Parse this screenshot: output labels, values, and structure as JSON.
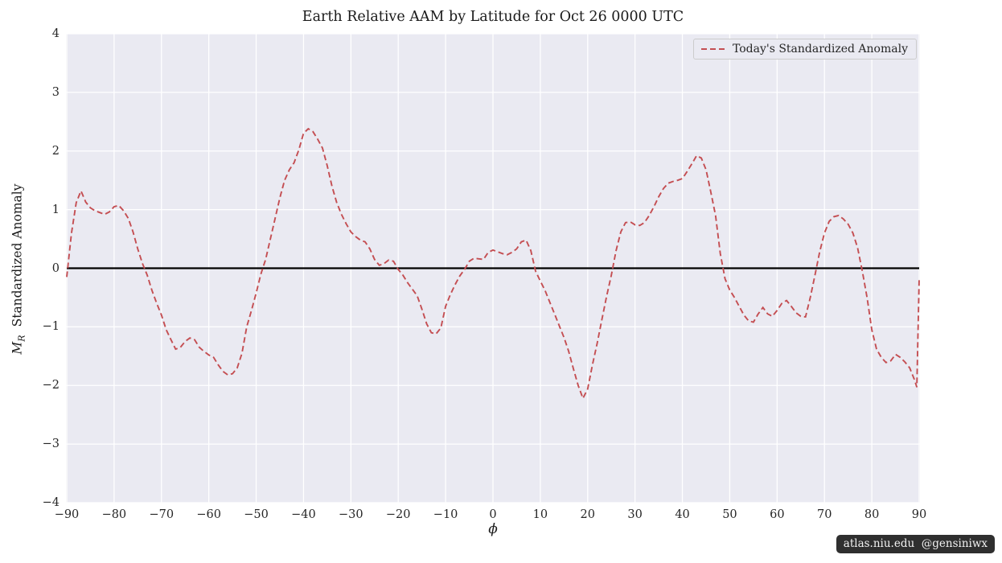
{
  "watermark": "atlas.niu.edu  @gensiniwx",
  "labels": {
    "ylabel_var": "M",
    "ylabel_sub": "R",
    "ylabel_text": "Standardized Anomaly"
  },
  "colors": {
    "axes_background": "#eaeaf2",
    "grid": "#ffffff",
    "series_red": "#c44e52",
    "zero_line": "#000000",
    "text": "#262626",
    "legend_border": "#cccccc",
    "badge_background": "#0a0a0a",
    "badge_text": "#f2f2f2"
  },
  "chart_data": {
    "type": "line",
    "title": "Earth Relative AAM by Latitude for Oct 26 0000 UTC",
    "xlabel": "ϕ",
    "ylabel": "M_R  Standardized Anomaly",
    "xlim": [
      -90,
      90
    ],
    "ylim": [
      -4,
      4
    ],
    "grid": true,
    "legend_position": "upper right",
    "xticks": [
      -90,
      -80,
      -70,
      -60,
      -50,
      -40,
      -30,
      -20,
      -10,
      0,
      10,
      20,
      30,
      40,
      50,
      60,
      70,
      80,
      90
    ],
    "xtick_labels": [
      "−90",
      "−80",
      "−70",
      "−60",
      "−50",
      "−40",
      "−30",
      "−20",
      "−10",
      "0",
      "10",
      "20",
      "30",
      "40",
      "50",
      "60",
      "70",
      "80",
      "90"
    ],
    "yticks": [
      -4,
      -3,
      -2,
      -1,
      0,
      1,
      2,
      3,
      4
    ],
    "ytick_labels": [
      "−4",
      "−3",
      "−2",
      "−1",
      "0",
      "1",
      "2",
      "3",
      "4"
    ],
    "zero_line": {
      "y": 0,
      "color": "#000000"
    },
    "series": [
      {
        "name": "Today's Standardized Anomaly",
        "color": "#c44e52",
        "style": "dashed",
        "points": [
          [
            -90,
            -0.15
          ],
          [
            -89,
            0.6
          ],
          [
            -88,
            1.12
          ],
          [
            -87,
            1.32
          ],
          [
            -86,
            1.13
          ],
          [
            -85,
            1.03
          ],
          [
            -84,
            0.98
          ],
          [
            -83,
            0.95
          ],
          [
            -82,
            0.92
          ],
          [
            -81,
            0.96
          ],
          [
            -80,
            1.05
          ],
          [
            -79,
            1.07
          ],
          [
            -78,
            0.98
          ],
          [
            -77,
            0.85
          ],
          [
            -76,
            0.62
          ],
          [
            -75,
            0.33
          ],
          [
            -74,
            0.08
          ],
          [
            -73,
            -0.12
          ],
          [
            -72,
            -0.38
          ],
          [
            -71,
            -0.6
          ],
          [
            -70,
            -0.8
          ],
          [
            -69,
            -1.05
          ],
          [
            -68,
            -1.22
          ],
          [
            -67,
            -1.38
          ],
          [
            -66,
            -1.35
          ],
          [
            -65,
            -1.25
          ],
          [
            -64,
            -1.19
          ],
          [
            -63,
            -1.22
          ],
          [
            -62,
            -1.35
          ],
          [
            -61,
            -1.42
          ],
          [
            -60,
            -1.48
          ],
          [
            -59,
            -1.52
          ],
          [
            -58,
            -1.65
          ],
          [
            -57,
            -1.76
          ],
          [
            -56,
            -1.82
          ],
          [
            -55,
            -1.8
          ],
          [
            -54,
            -1.7
          ],
          [
            -53,
            -1.45
          ],
          [
            -52,
            -1.0
          ],
          [
            -51,
            -0.72
          ],
          [
            -50,
            -0.42
          ],
          [
            -49,
            -0.1
          ],
          [
            -48,
            0.15
          ],
          [
            -47,
            0.5
          ],
          [
            -46,
            0.85
          ],
          [
            -45,
            1.2
          ],
          [
            -44,
            1.5
          ],
          [
            -43,
            1.68
          ],
          [
            -42,
            1.8
          ],
          [
            -41,
            2.02
          ],
          [
            -40,
            2.3
          ],
          [
            -39,
            2.38
          ],
          [
            -38,
            2.33
          ],
          [
            -37,
            2.2
          ],
          [
            -36,
            2.05
          ],
          [
            -35,
            1.75
          ],
          [
            -34,
            1.4
          ],
          [
            -33,
            1.12
          ],
          [
            -32,
            0.92
          ],
          [
            -31,
            0.76
          ],
          [
            -30,
            0.62
          ],
          [
            -29,
            0.54
          ],
          [
            -28,
            0.48
          ],
          [
            -27,
            0.45
          ],
          [
            -26,
            0.33
          ],
          [
            -25,
            0.15
          ],
          [
            -24,
            0.05
          ],
          [
            -23,
            0.08
          ],
          [
            -22,
            0.14
          ],
          [
            -21,
            0.12
          ],
          [
            -20,
            -0.02
          ],
          [
            -19,
            -0.12
          ],
          [
            -18,
            -0.25
          ],
          [
            -17,
            -0.36
          ],
          [
            -16,
            -0.47
          ],
          [
            -15,
            -0.7
          ],
          [
            -14,
            -0.95
          ],
          [
            -13,
            -1.1
          ],
          [
            -12,
            -1.12
          ],
          [
            -11,
            -1.02
          ],
          [
            -10,
            -0.65
          ],
          [
            -9,
            -0.45
          ],
          [
            -8,
            -0.28
          ],
          [
            -7,
            -0.13
          ],
          [
            -6,
            -0.02
          ],
          [
            -5,
            0.12
          ],
          [
            -4,
            0.17
          ],
          [
            -3,
            0.16
          ],
          [
            -2,
            0.15
          ],
          [
            -1,
            0.27
          ],
          [
            0,
            0.31
          ],
          [
            1,
            0.28
          ],
          [
            2,
            0.25
          ],
          [
            3,
            0.23
          ],
          [
            4,
            0.27
          ],
          [
            5,
            0.33
          ],
          [
            6,
            0.45
          ],
          [
            7,
            0.48
          ],
          [
            8,
            0.3
          ],
          [
            9,
            -0.05
          ],
          [
            10,
            -0.22
          ],
          [
            11,
            -0.38
          ],
          [
            12,
            -0.58
          ],
          [
            13,
            -0.78
          ],
          [
            14,
            -0.98
          ],
          [
            15,
            -1.18
          ],
          [
            16,
            -1.42
          ],
          [
            17,
            -1.72
          ],
          [
            18,
            -2.0
          ],
          [
            19,
            -2.22
          ],
          [
            20,
            -2.06
          ],
          [
            21,
            -1.65
          ],
          [
            22,
            -1.28
          ],
          [
            23,
            -0.88
          ],
          [
            24,
            -0.48
          ],
          [
            25,
            -0.12
          ],
          [
            26,
            0.3
          ],
          [
            27,
            0.62
          ],
          [
            28,
            0.78
          ],
          [
            29,
            0.79
          ],
          [
            30,
            0.74
          ],
          [
            31,
            0.73
          ],
          [
            32,
            0.78
          ],
          [
            33,
            0.9
          ],
          [
            34,
            1.05
          ],
          [
            35,
            1.22
          ],
          [
            36,
            1.36
          ],
          [
            37,
            1.45
          ],
          [
            38,
            1.48
          ],
          [
            39,
            1.5
          ],
          [
            40,
            1.53
          ],
          [
            41,
            1.65
          ],
          [
            42,
            1.78
          ],
          [
            43,
            1.92
          ],
          [
            44,
            1.88
          ],
          [
            45,
            1.68
          ],
          [
            46,
            1.3
          ],
          [
            47,
            0.9
          ],
          [
            48,
            0.25
          ],
          [
            49,
            -0.18
          ],
          [
            50,
            -0.37
          ],
          [
            51,
            -0.5
          ],
          [
            52,
            -0.65
          ],
          [
            53,
            -0.8
          ],
          [
            54,
            -0.9
          ],
          [
            55,
            -0.92
          ],
          [
            56,
            -0.78
          ],
          [
            57,
            -0.67
          ],
          [
            58,
            -0.78
          ],
          [
            59,
            -0.82
          ],
          [
            60,
            -0.72
          ],
          [
            61,
            -0.6
          ],
          [
            62,
            -0.55
          ],
          [
            63,
            -0.65
          ],
          [
            64,
            -0.76
          ],
          [
            65,
            -0.82
          ],
          [
            66,
            -0.83
          ],
          [
            67,
            -0.5
          ],
          [
            68,
            -0.12
          ],
          [
            69,
            0.28
          ],
          [
            70,
            0.6
          ],
          [
            71,
            0.8
          ],
          [
            72,
            0.88
          ],
          [
            73,
            0.9
          ],
          [
            74,
            0.84
          ],
          [
            75,
            0.75
          ],
          [
            76,
            0.6
          ],
          [
            77,
            0.35
          ],
          [
            78,
            -0.05
          ],
          [
            79,
            -0.5
          ],
          [
            80,
            -1.05
          ],
          [
            81,
            -1.38
          ],
          [
            82,
            -1.52
          ],
          [
            83,
            -1.61
          ],
          [
            84,
            -1.58
          ],
          [
            85,
            -1.47
          ],
          [
            86,
            -1.52
          ],
          [
            87,
            -1.6
          ],
          [
            88,
            -1.7
          ],
          [
            89,
            -1.9
          ],
          [
            89.5,
            -2.03
          ],
          [
            90,
            -0.17
          ]
        ]
      }
    ]
  }
}
